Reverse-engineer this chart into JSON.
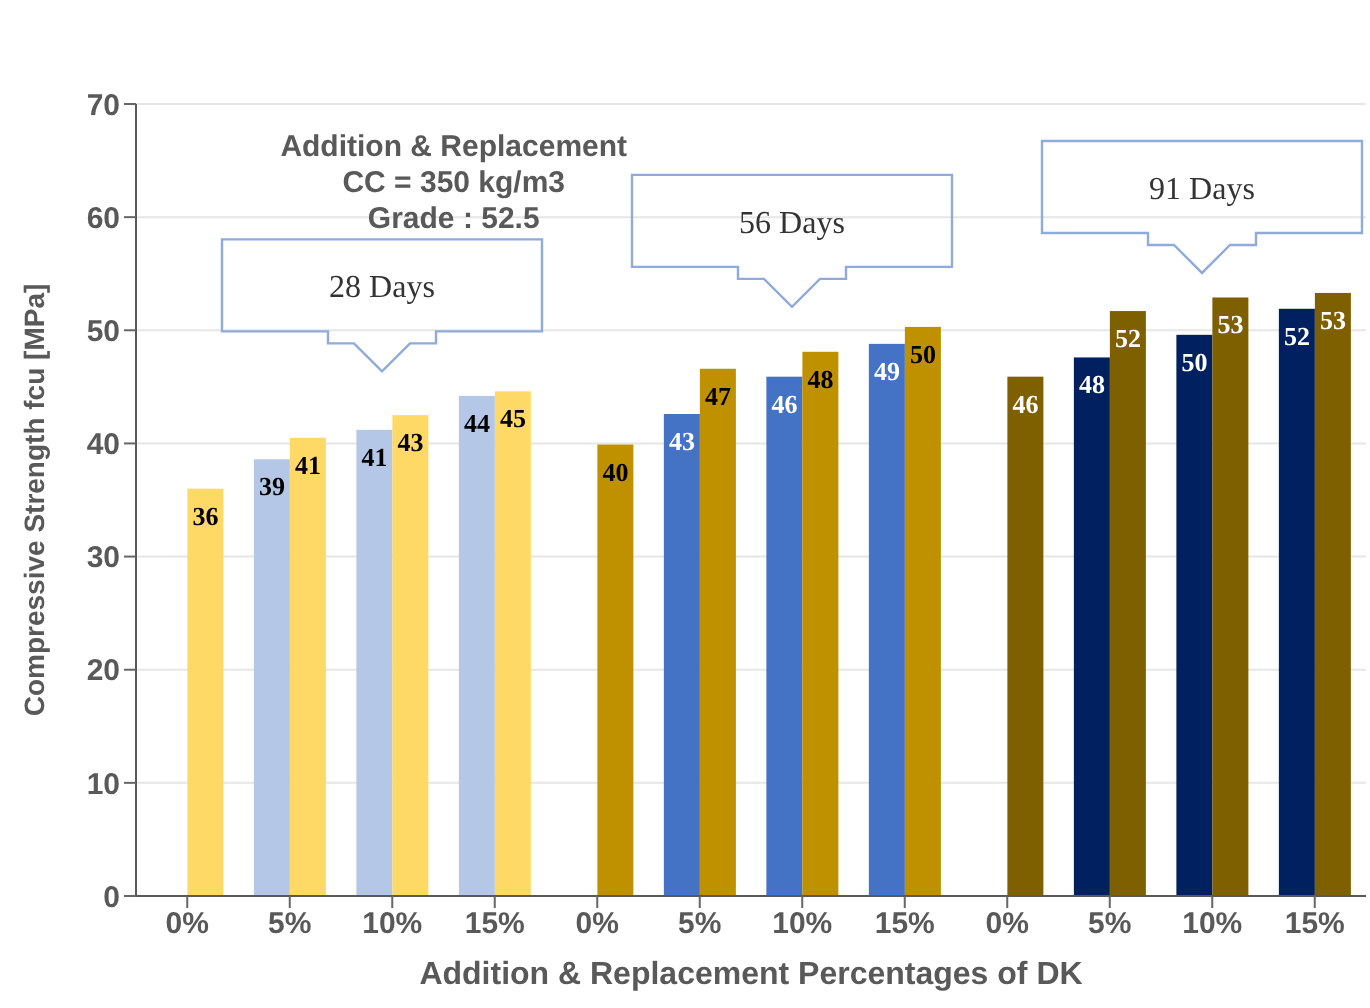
{
  "chart_data": {
    "type": "bar",
    "categories": [
      "0%",
      "5%",
      "10%",
      "15%",
      "0%",
      "5%",
      "10%",
      "15%",
      "0%",
      "5%",
      "10%",
      "15%"
    ],
    "series": [
      {
        "colors": [
          "#b4c7e7",
          "#b4c7e7",
          "#b4c7e7",
          "#b4c7e7",
          "#4472c4",
          "#4472c4",
          "#4472c4",
          "#4472c4",
          "#002060",
          "#002060",
          "#002060",
          "#002060"
        ],
        "values": [
          null,
          38.6,
          41.2,
          44.2,
          null,
          42.6,
          45.9,
          48.8,
          null,
          47.6,
          49.6,
          51.9
        ],
        "value_labels": [
          null,
          "39",
          "41",
          "44",
          null,
          "43",
          "46",
          "49",
          null,
          "48",
          "50",
          "52"
        ]
      },
      {
        "colors": [
          "#ffd966",
          "#ffd966",
          "#ffd966",
          "#ffd966",
          "#bf9000",
          "#bf9000",
          "#bf9000",
          "#bf9000",
          "#7f6000",
          "#7f6000",
          "#7f6000",
          "#7f6000"
        ],
        "values": [
          36.0,
          40.5,
          42.5,
          44.6,
          39.9,
          46.6,
          48.1,
          50.3,
          45.9,
          51.7,
          52.9,
          53.3
        ],
        "value_labels": [
          "36",
          "41",
          "43",
          "45",
          "40",
          "47",
          "48",
          "50",
          "46",
          "52",
          "53",
          "53"
        ]
      }
    ],
    "ylim": [
      0,
      70
    ],
    "yticks": [
      0,
      10,
      20,
      30,
      40,
      50,
      60,
      70
    ],
    "grid": "y",
    "ylabel": "Compressive Strength fcu [MPa]",
    "xlabel": "Addition & Replacement Percentages of DK",
    "annotations": [
      "Addition & Replacement",
      "CC = 350 kg/m3",
      "Grade : 52.5",
      "28 Days",
      "56 Days",
      "91 Days"
    ]
  }
}
